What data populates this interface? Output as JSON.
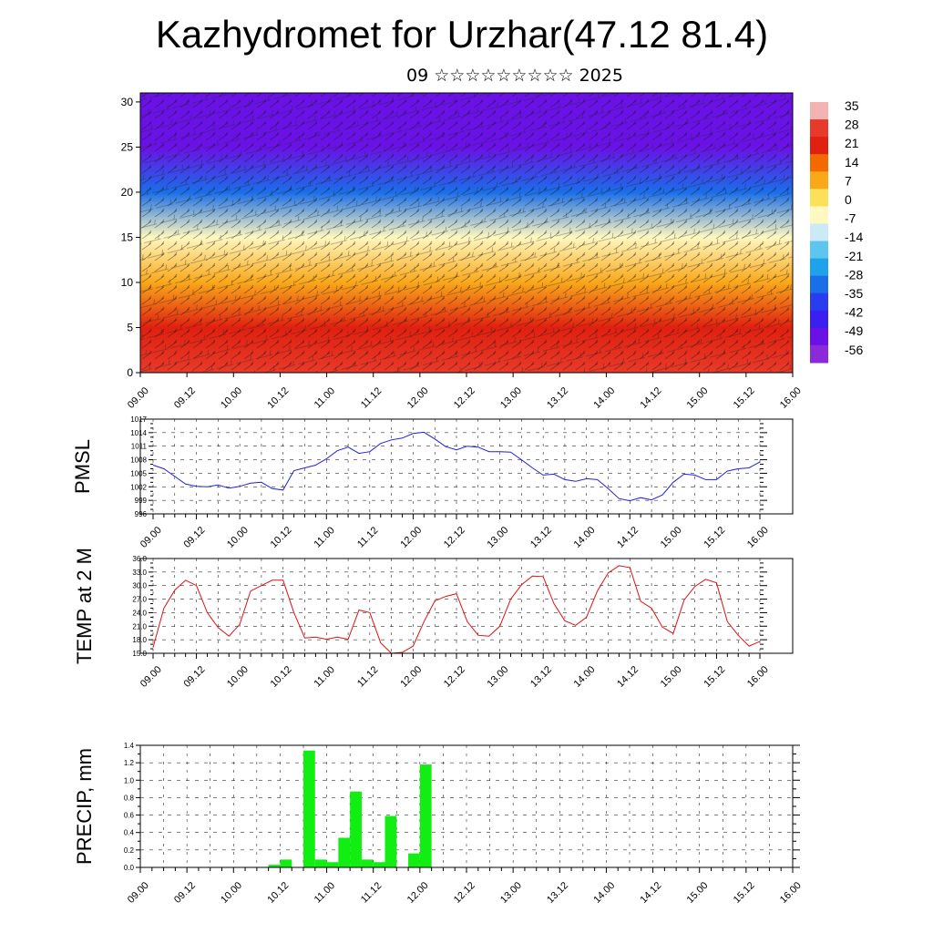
{
  "title": "Kazhydromet for Urzhar(47.12 81.4)",
  "subtitle": "09 ☆☆☆☆☆☆☆☆☆ 2025",
  "x_ticks": [
    "09.00",
    "09.12",
    "10.00",
    "10.12",
    "11.00",
    "11.12",
    "12.00",
    "12.12",
    "13.00",
    "13.12",
    "14.00",
    "14.12",
    "15.00",
    "15.12",
    "16.00"
  ],
  "chart_data": [
    {
      "type": "heatmap",
      "description_of_axes": "time vs level",
      "y_ticks": [
        0,
        5,
        10,
        15,
        20,
        25,
        30
      ],
      "ylim": [
        0,
        31
      ],
      "colorbar": {
        "labels": [
          35,
          28,
          21,
          14,
          7,
          0,
          -7,
          -14,
          -21,
          -28,
          -35,
          -42,
          -49,
          -56
        ],
        "colors": [
          "#f3b3b3",
          "#e83a2a",
          "#e02010",
          "#f26a00",
          "#f9a81a",
          "#fde05a",
          "#fff8c0",
          "#cce9f6",
          "#5cc6ef",
          "#1fa2ea",
          "#1a6ee8",
          "#2a3cef",
          "#3a1ff0",
          "#6a12e6",
          "#8a2ad8"
        ]
      },
      "levels": [
        0,
        5,
        10,
        15,
        20,
        25,
        30
      ],
      "level_temps": [
        30,
        22,
        10,
        -8,
        -30,
        -55,
        -52
      ]
    },
    {
      "type": "line",
      "ylabel": "PMSL",
      "ylim": [
        996,
        1017
      ],
      "y_ticks": [
        996,
        999,
        1002,
        1005,
        1008,
        1011,
        1014,
        1017
      ],
      "color": "#2020dd",
      "x": [
        0,
        3,
        6,
        9,
        12,
        15,
        18,
        21,
        24,
        27,
        30,
        33,
        36,
        39,
        42,
        45,
        48,
        51,
        54,
        57,
        60,
        63,
        66,
        69,
        72,
        75,
        78,
        81,
        84,
        87,
        90,
        93,
        96,
        99,
        102,
        105,
        108,
        111,
        114,
        117,
        120,
        123,
        126,
        129,
        132,
        135,
        138,
        141,
        144,
        147,
        150,
        153,
        156,
        159,
        162,
        165,
        168
      ],
      "values": [
        1006.8,
        1006,
        1004.3,
        1002.6,
        1002.1,
        1002,
        1002.4,
        1001.7,
        1002.1,
        1002.8,
        1003,
        1001.6,
        1001.3,
        1005.6,
        1006.2,
        1006.8,
        1008.2,
        1010,
        1010.8,
        1009.4,
        1009.8,
        1011.6,
        1012.4,
        1012.8,
        1013.8,
        1014.1,
        1012.6,
        1010.9,
        1010.2,
        1011,
        1010.8,
        1009.8,
        1009.8,
        1009.7,
        1008,
        1006.2,
        1004.6,
        1004.8,
        1003.6,
        1003.2,
        1003.8,
        1003.6,
        1001.6,
        999.4,
        998.9,
        999.6,
        999.1,
        1000.2,
        1003,
        1004.8,
        1004.6,
        1003.6,
        1003.6,
        1005.5,
        1006,
        1006.2,
        1007.5
      ]
    },
    {
      "type": "line",
      "ylabel": "TEMP at 2 M",
      "ylim": [
        15,
        36
      ],
      "y_ticks": [
        "15.0",
        "18.0",
        "21.0",
        "24.0",
        "27.0",
        "30.0",
        "33.0",
        "36.0"
      ],
      "color": "#dd1111",
      "x": [
        0,
        3,
        6,
        9,
        12,
        15,
        18,
        21,
        24,
        27,
        30,
        33,
        36,
        39,
        42,
        45,
        48,
        51,
        54,
        57,
        60,
        63,
        66,
        69,
        72,
        75,
        78,
        81,
        84,
        87,
        90,
        93,
        96,
        99,
        102,
        105,
        108,
        111,
        114,
        117,
        120,
        123,
        126,
        129,
        132,
        135,
        138,
        141,
        144,
        147,
        150,
        153,
        156,
        159,
        162,
        165,
        168
      ],
      "values": [
        16.3,
        25,
        29,
        31.2,
        30,
        24,
        20.7,
        18.8,
        21.4,
        28.8,
        30,
        31.2,
        31.2,
        24,
        18.4,
        18.6,
        18.1,
        18.6,
        18.1,
        24.6,
        24,
        17.3,
        15,
        15.2,
        16.6,
        22,
        26.6,
        27.6,
        28.2,
        22,
        19,
        18.8,
        21,
        27,
        30.2,
        32.1,
        32,
        26,
        22.2,
        21.2,
        23,
        28.8,
        32.8,
        34.4,
        34,
        26.5,
        25,
        20.8,
        19.4,
        26.8,
        29.8,
        31.4,
        30.6,
        22,
        19,
        16.6,
        17.6
      ]
    },
    {
      "type": "bar",
      "ylabel": "PRECIP, mm",
      "ylim": [
        0,
        1.4
      ],
      "y_ticks": [
        "0.0",
        "0.2",
        "0.4",
        "0.6",
        "0.8",
        "1.0",
        "1.2",
        "1.4"
      ],
      "color": "#11ee11",
      "x_start": [
        33,
        36,
        42,
        45,
        48,
        51,
        54,
        57,
        60,
        63,
        66,
        69,
        72
      ],
      "values": [
        0.03,
        0.09,
        1.34,
        0.09,
        0.06,
        0.34,
        0.87,
        0.09,
        0.06,
        0.59,
        0,
        0.16,
        1.18
      ]
    }
  ]
}
